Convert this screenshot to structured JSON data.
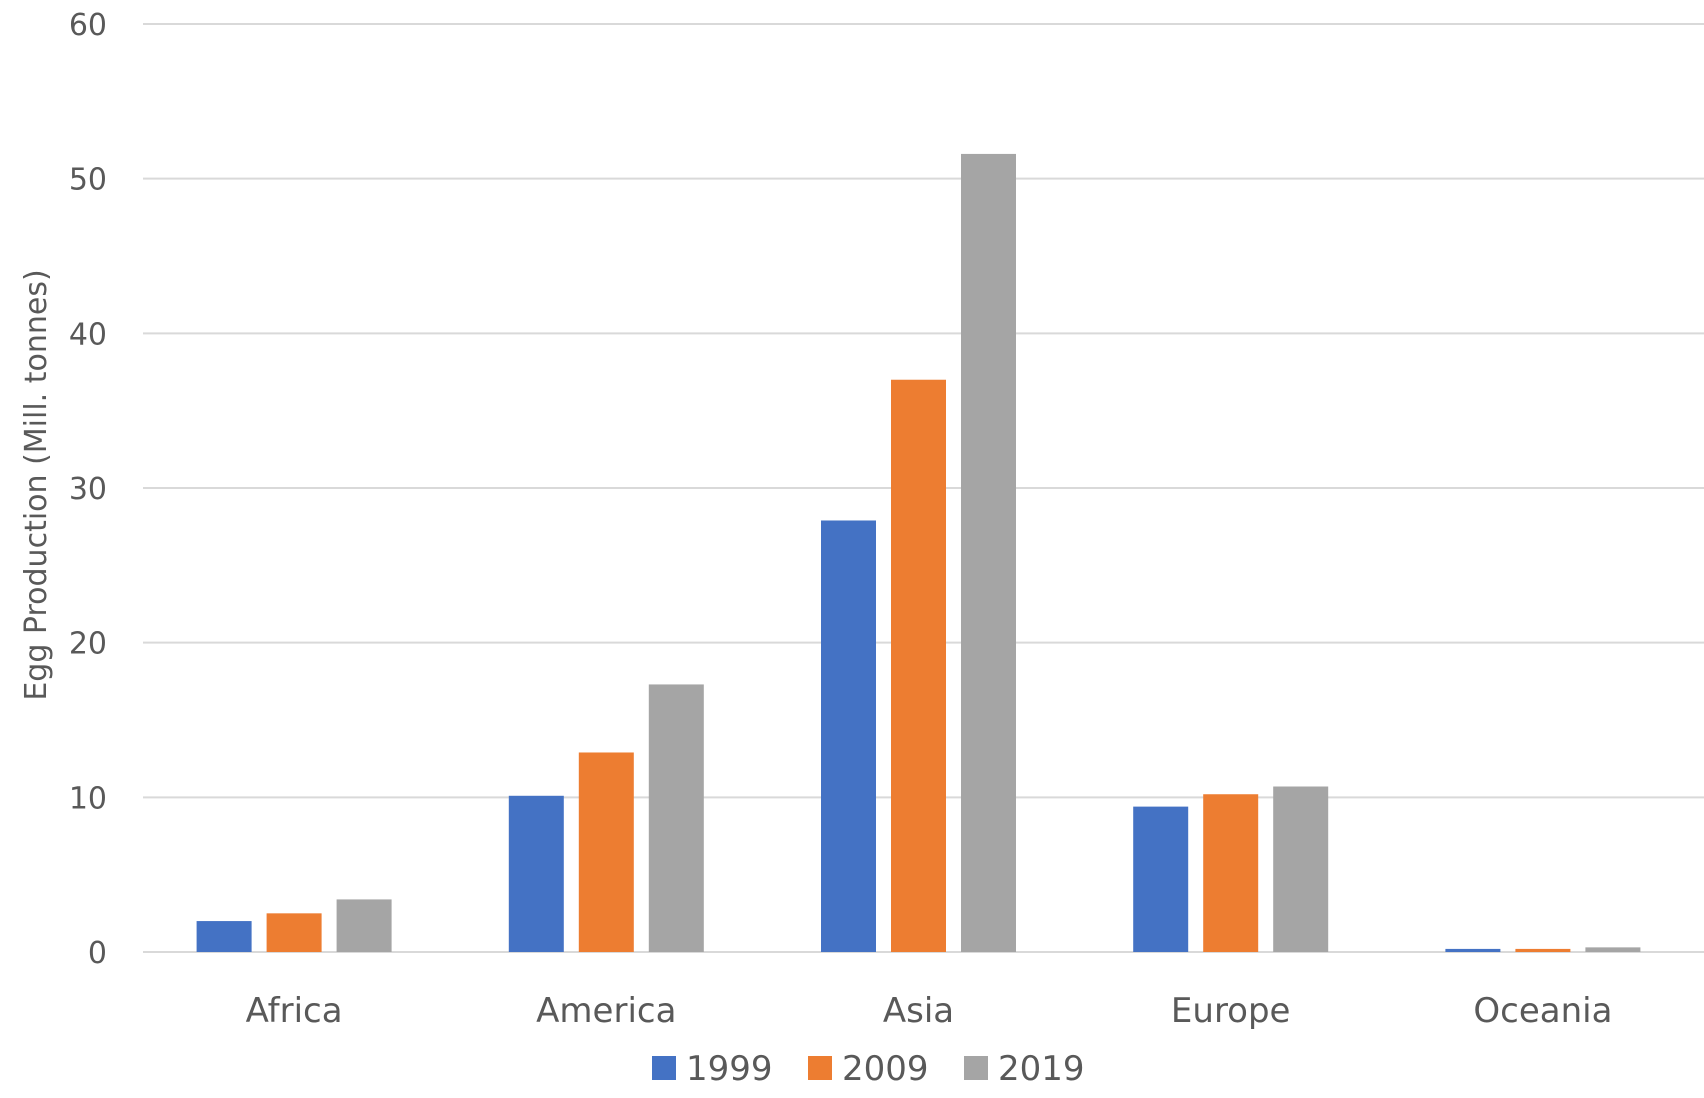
{
  "chart_data": {
    "type": "bar",
    "title": "",
    "xlabel": "",
    "ylabel": "Egg Production (Mill. tonnes)",
    "ylim": [
      0,
      60
    ],
    "yticks": [
      0,
      10,
      20,
      30,
      40,
      50,
      60
    ],
    "grid": true,
    "legend_position": "bottom",
    "categories": [
      "Africa",
      "America",
      "Asia",
      "Europe",
      "Oceania"
    ],
    "series": [
      {
        "name": "1999",
        "color": "#4472C4",
        "values": [
          2.0,
          10.1,
          27.9,
          9.4,
          0.2
        ]
      },
      {
        "name": "2009",
        "color": "#ED7D31",
        "values": [
          2.5,
          12.9,
          37.0,
          10.2,
          0.2
        ]
      },
      {
        "name": "2019",
        "color": "#A5A5A5",
        "values": [
          3.4,
          17.3,
          51.6,
          10.7,
          0.3
        ]
      }
    ]
  }
}
